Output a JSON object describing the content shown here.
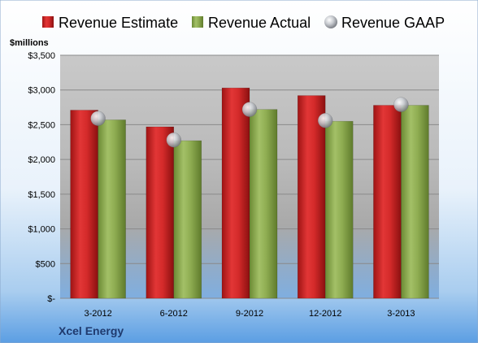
{
  "chart_data": {
    "type": "bar",
    "categories": [
      "3-2012",
      "6-2012",
      "9-2012",
      "12-2012",
      "3-2013"
    ],
    "series": [
      {
        "name": "Revenue Estimate",
        "type": "bar",
        "color": "#d42a2a",
        "values": [
          2710,
          2470,
          3030,
          2920,
          2780
        ]
      },
      {
        "name": "Revenue Actual",
        "type": "bar",
        "color": "#8fad52",
        "values": [
          2570,
          2270,
          2720,
          2550,
          2780
        ]
      },
      {
        "name": "Revenue GAAP",
        "type": "marker",
        "color": "#c4c7cc",
        "values": [
          2590,
          2280,
          2720,
          2560,
          2790
        ]
      }
    ],
    "ylabel": "$millions",
    "ylim": [
      0,
      3500
    ],
    "yticks": [
      0,
      500,
      1000,
      1500,
      2000,
      2500,
      3000,
      3500
    ],
    "ytick_labels": [
      "$-",
      "$500",
      "$1,000",
      "$1,500",
      "$2,000",
      "$2,500",
      "$3,000",
      "$3,500"
    ],
    "grid": true,
    "legend_position": "top",
    "company": "Xcel Energy"
  }
}
